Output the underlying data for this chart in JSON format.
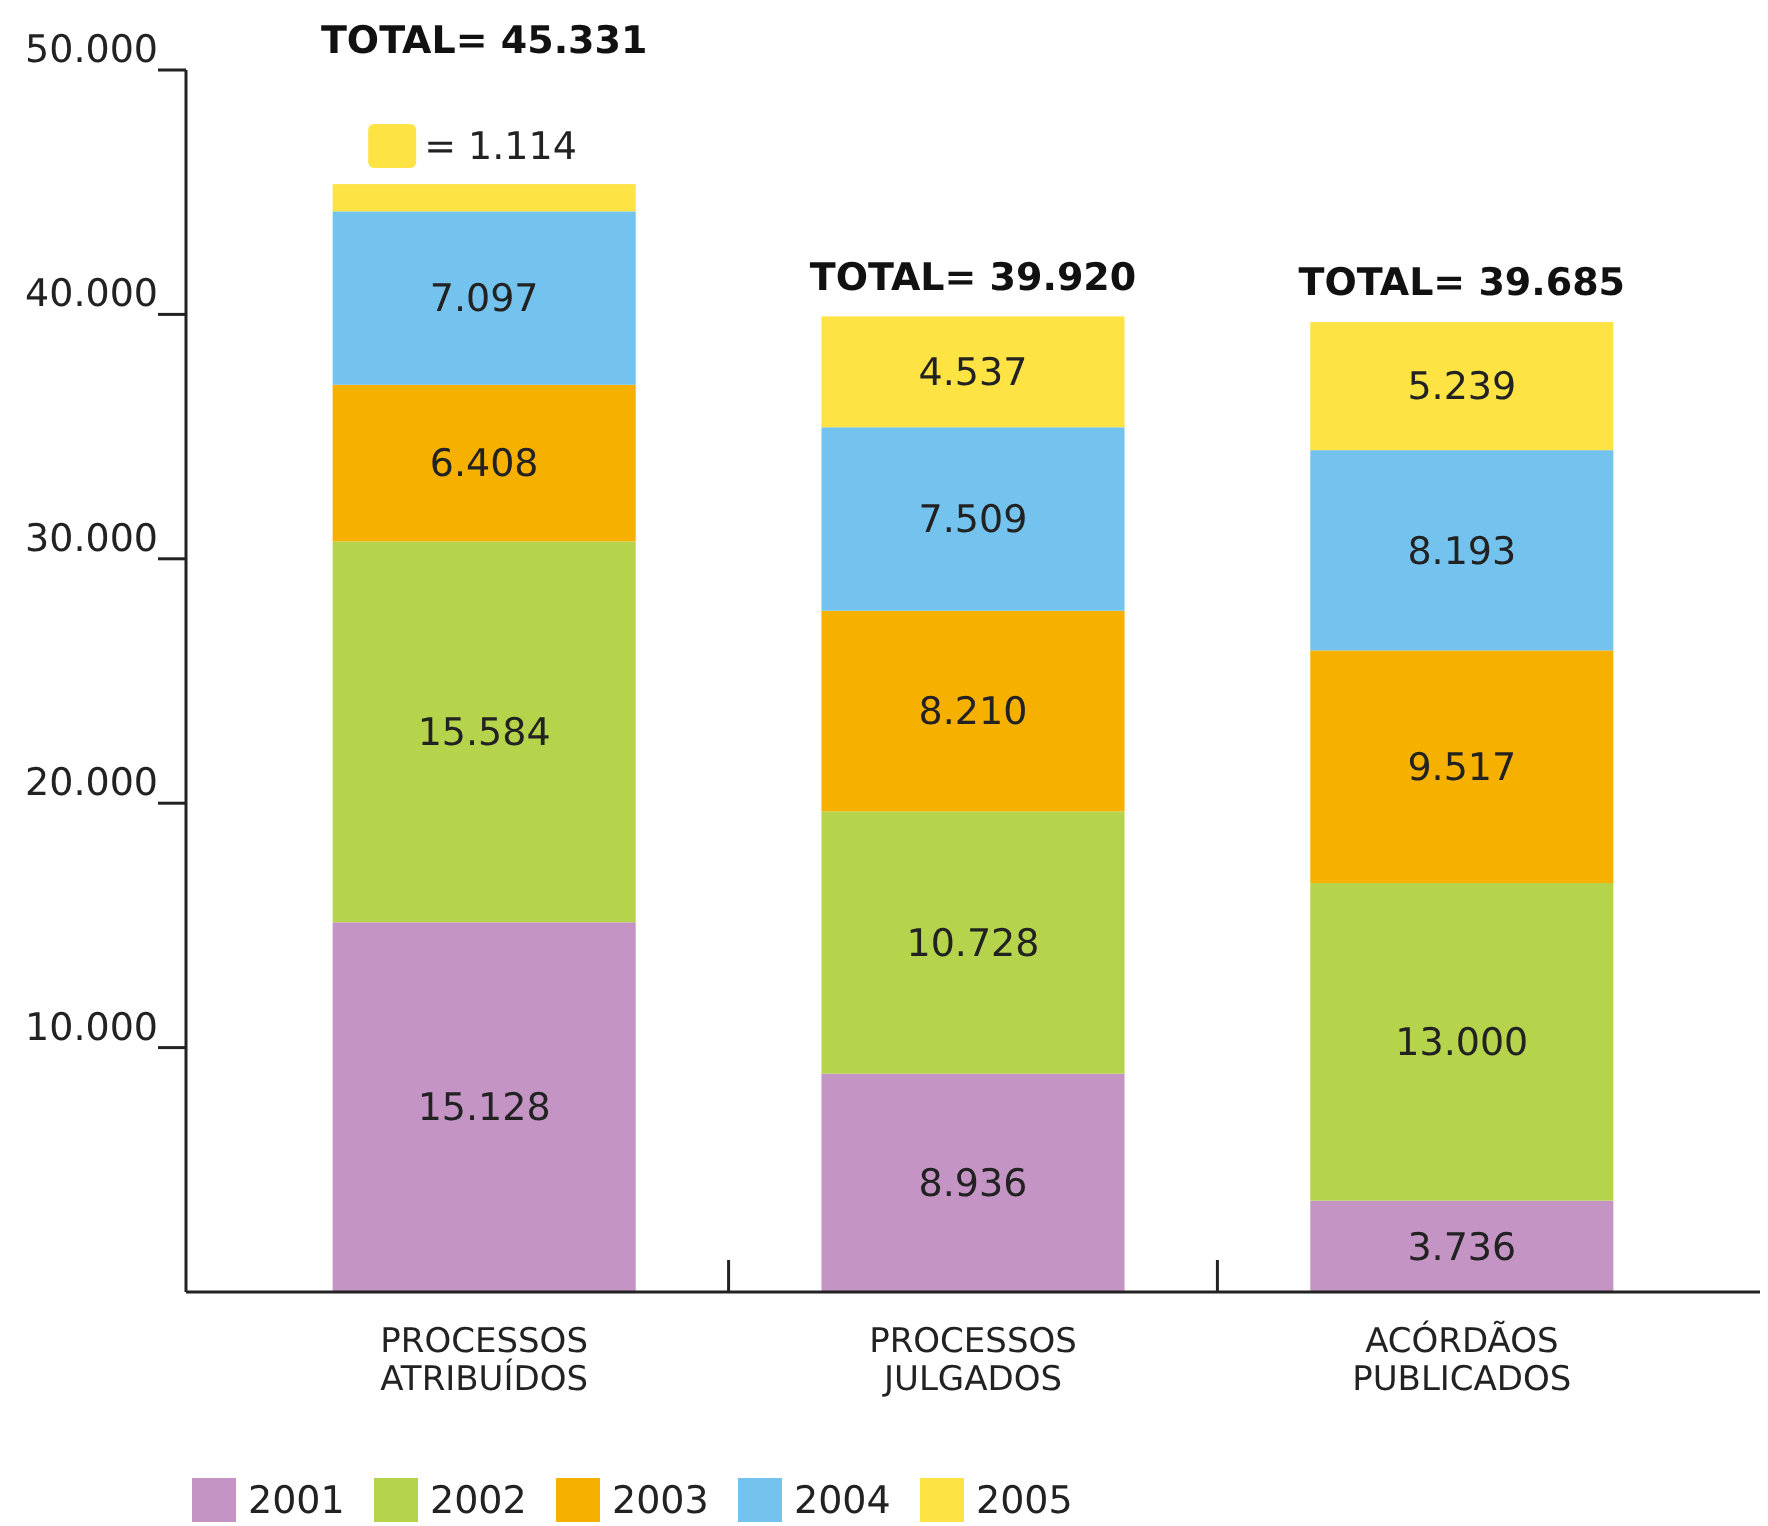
{
  "chart_data": {
    "type": "bar",
    "stacked": true,
    "categories": [
      "PROCESSOS ATRIBUÍDOS",
      "PROCESSOS JULGADOS",
      "ACÓRDÃOS PUBLICADOS"
    ],
    "series": [
      {
        "name": "2001",
        "color": "#c495c4",
        "values": [
          15128,
          8936,
          3736
        ],
        "value_labels": [
          "15.128",
          "8.936",
          "3.736"
        ]
      },
      {
        "name": "2002",
        "color": "#b5d44c",
        "values": [
          15584,
          10728,
          13000
        ],
        "value_labels": [
          "15.584",
          "10.728",
          "13.000"
        ]
      },
      {
        "name": "2003",
        "color": "#f6b000",
        "values": [
          6408,
          8210,
          9517
        ],
        "value_labels": [
          "6.408",
          "8.210",
          "9.517"
        ]
      },
      {
        "name": "2004",
        "color": "#74c3ee",
        "values": [
          7097,
          7509,
          8193
        ],
        "value_labels": [
          "7.097",
          "7.509",
          "8.193"
        ]
      },
      {
        "name": "2005",
        "color": "#fde344",
        "values": [
          1114,
          4537,
          5239
        ],
        "value_labels": [
          "= 1.114",
          "4.537",
          "5.239"
        ]
      }
    ],
    "totals": [
      "TOTAL= 45.331",
      "TOTAL= 39.920",
      "TOTAL= 39.685"
    ],
    "ylim": [
      0,
      50000
    ],
    "yticks": [
      {
        "value": 10000,
        "label": "10.000"
      },
      {
        "value": 20000,
        "label": "20.000"
      },
      {
        "value": 30000,
        "label": "30.000"
      },
      {
        "value": 40000,
        "label": "40.000"
      },
      {
        "value": 50000,
        "label": "50.000"
      }
    ],
    "grid": false,
    "legend": "bottom"
  }
}
